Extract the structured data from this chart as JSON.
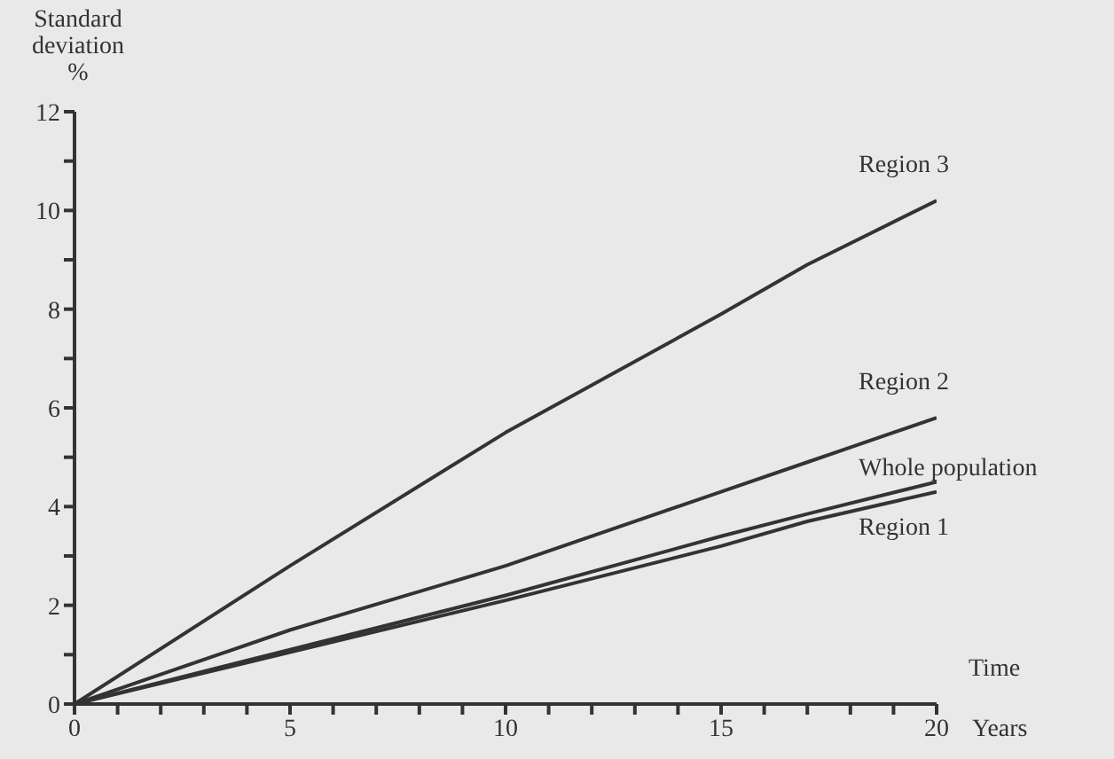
{
  "chart_data": {
    "type": "line",
    "xlabel": "Time",
    "ylabel": "Standard deviation %",
    "annotations": [
      "Years"
    ],
    "x": [
      0,
      5,
      10,
      15,
      17,
      20
    ],
    "series": [
      {
        "name": "Region 3",
        "color": "#333333",
        "values": [
          0,
          2.8,
          5.5,
          7.9,
          8.9,
          10.2
        ]
      },
      {
        "name": "Region 2",
        "color": "#333333",
        "values": [
          0,
          1.5,
          2.8,
          4.3,
          4.9,
          5.8
        ]
      },
      {
        "name": "Whole population",
        "color": "#333333",
        "values": [
          0,
          1.1,
          2.2,
          3.4,
          3.85,
          4.5
        ]
      },
      {
        "name": "Region 1",
        "color": "#333333",
        "values": [
          0,
          1.05,
          2.1,
          3.2,
          3.7,
          4.3
        ]
      }
    ],
    "xlim": [
      0,
      20
    ],
    "xticks": [
      0,
      {
        "value": 1,
        "label": null
      },
      {
        "value": 2,
        "label": null
      },
      {
        "value": 3,
        "label": null
      },
      {
        "value": 4,
        "label": null
      },
      5,
      {
        "value": 6,
        "label": null
      },
      {
        "value": 7,
        "label": null
      },
      {
        "value": 8,
        "label": null
      },
      {
        "value": 9,
        "label": null
      },
      10,
      {
        "value": 11,
        "label": null
      },
      {
        "value": 12,
        "label": null
      },
      {
        "value": 13,
        "label": null
      },
      {
        "value": 14,
        "label": null
      },
      15,
      {
        "value": 16,
        "label": null
      },
      {
        "value": 17,
        "label": null
      },
      {
        "value": 18,
        "label": null
      },
      {
        "value": 19,
        "label": null
      },
      20
    ],
    "ylim": [
      0,
      12
    ],
    "yticks": [
      0,
      {
        "value": 1,
        "label": null
      },
      2,
      {
        "value": 3,
        "label": null
      },
      4,
      {
        "value": 5,
        "label": null
      },
      6,
      {
        "value": 7,
        "label": null
      },
      8,
      {
        "value": 9,
        "label": null
      },
      10,
      {
        "value": 11,
        "label": null
      },
      12
    ],
    "grid": false,
    "legend": false
  }
}
